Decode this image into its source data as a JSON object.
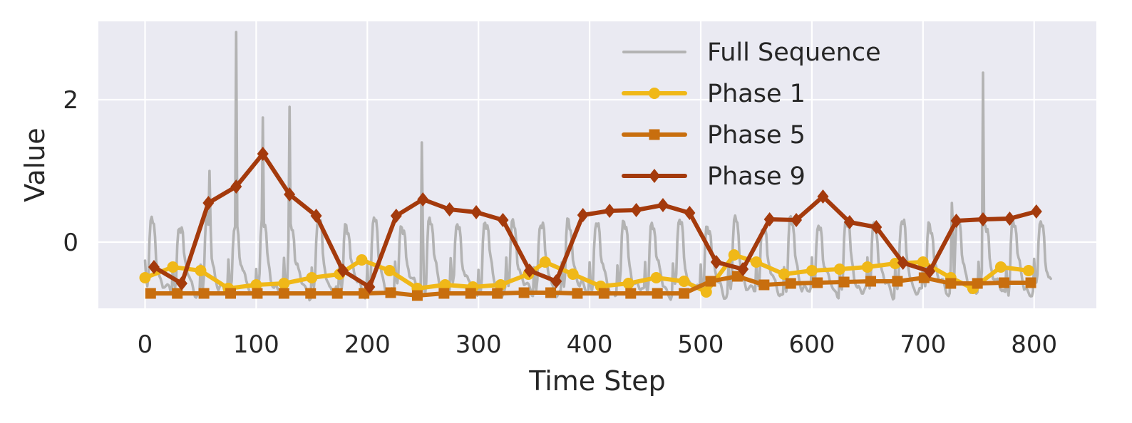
{
  "chart_data": {
    "type": "line",
    "title": "",
    "xlabel": "Time Step",
    "ylabel": "Value",
    "xlim": [
      -42,
      856
    ],
    "ylim": [
      -0.93,
      3.1
    ],
    "xticks": [
      0,
      100,
      200,
      300,
      400,
      500,
      600,
      700,
      800
    ],
    "yticks": [
      0,
      2
    ],
    "grid": true,
    "legend_position": "top-right",
    "background_color": "#eaeaf2",
    "series": [
      {
        "name": "Full Sequence",
        "color": "#b3b3b3",
        "marker": "none",
        "x_start": 0,
        "x_step": 1,
        "values_note": "periodic sawtooth-like signal, period ~25 steps",
        "period": 25,
        "base_cycle": [
          -0.3,
          -0.55,
          -0.65,
          -0.5,
          0.0,
          0.25,
          0.28,
          0.2,
          0.22,
          0.1,
          -0.2,
          -0.3,
          -0.35,
          -0.45,
          -0.5,
          -0.55,
          -0.6,
          -0.6,
          -0.62,
          -0.65,
          -0.68,
          -0.7,
          -0.7,
          -0.72,
          -0.7
        ],
        "end_x": 815,
        "spikes": [
          {
            "x": 58,
            "y": 1.0
          },
          {
            "x": 82,
            "y": 2.95
          },
          {
            "x": 106,
            "y": 1.75
          },
          {
            "x": 130,
            "y": 1.9
          },
          {
            "x": 249,
            "y": 1.4
          },
          {
            "x": 726,
            "y": 0.55
          },
          {
            "x": 754,
            "y": 2.38
          }
        ]
      },
      {
        "name": "Phase 1",
        "color": "#f0b818",
        "marker": "circle",
        "x": [
          0,
          25,
          50,
          75,
          100,
          125,
          150,
          175,
          195,
          220,
          245,
          270,
          295,
          320,
          345,
          360,
          385,
          410,
          435,
          460,
          485,
          505,
          530,
          550,
          575,
          600,
          625,
          650,
          675,
          700,
          725,
          745,
          770,
          795
        ],
        "values": [
          -0.5,
          -0.35,
          -0.4,
          -0.65,
          -0.6,
          -0.58,
          -0.5,
          -0.45,
          -0.25,
          -0.4,
          -0.65,
          -0.6,
          -0.63,
          -0.6,
          -0.45,
          -0.28,
          -0.45,
          -0.62,
          -0.58,
          -0.5,
          -0.55,
          -0.7,
          -0.18,
          -0.28,
          -0.45,
          -0.4,
          -0.38,
          -0.35,
          -0.3,
          -0.28,
          -0.5,
          -0.65,
          -0.35,
          -0.4
        ]
      },
      {
        "name": "Phase 5",
        "color": "#c86e0e",
        "marker": "square",
        "x": [
          5,
          29,
          53,
          77,
          101,
          125,
          149,
          173,
          197,
          221,
          245,
          269,
          293,
          317,
          341,
          365,
          389,
          413,
          437,
          461,
          485,
          509,
          533,
          557,
          581,
          605,
          629,
          653,
          677,
          701,
          725,
          749,
          773,
          797
        ],
        "values": [
          -0.72,
          -0.72,
          -0.72,
          -0.72,
          -0.72,
          -0.72,
          -0.72,
          -0.72,
          -0.72,
          -0.71,
          -0.75,
          -0.72,
          -0.72,
          -0.72,
          -0.71,
          -0.71,
          -0.72,
          -0.72,
          -0.72,
          -0.72,
          -0.72,
          -0.55,
          -0.48,
          -0.6,
          -0.58,
          -0.57,
          -0.56,
          -0.55,
          -0.55,
          -0.5,
          -0.58,
          -0.58,
          -0.57,
          -0.57
        ]
      },
      {
        "name": "Phase 9",
        "color": "#a43a0c",
        "marker": "diamond",
        "x": [
          8,
          33,
          57,
          82,
          106,
          130,
          154,
          178,
          202,
          226,
          250,
          274,
          298,
          322,
          346,
          370,
          394,
          418,
          442,
          466,
          490,
          514,
          538,
          562,
          586,
          610,
          634,
          658,
          682,
          706,
          730,
          754,
          778,
          802
        ],
        "values": [
          -0.35,
          -0.58,
          0.55,
          0.78,
          1.24,
          0.67,
          0.37,
          -0.4,
          -0.63,
          0.37,
          0.6,
          0.46,
          0.42,
          0.31,
          -0.4,
          -0.55,
          0.38,
          0.44,
          0.45,
          0.52,
          0.41,
          -0.28,
          -0.38,
          0.32,
          0.31,
          0.64,
          0.28,
          0.21,
          -0.29,
          -0.41,
          0.3,
          0.32,
          0.33,
          0.43
        ]
      }
    ]
  }
}
